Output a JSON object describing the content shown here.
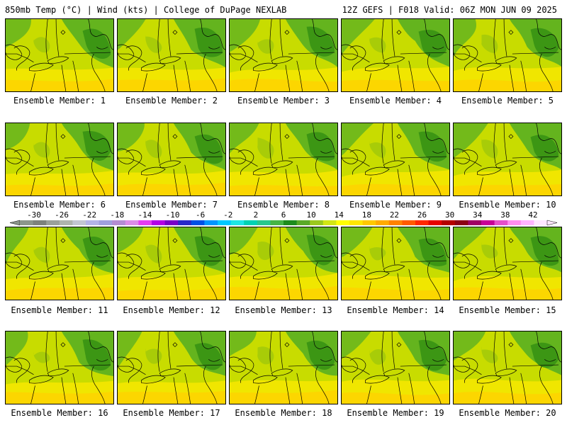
{
  "header": {
    "left": "850mb Temp (°C) | Wind (kts) | College of DuPage NEXLAB",
    "right": "12Z GEFS | F018 Valid: 06Z MON JUN 09 2025"
  },
  "panels": [
    {
      "label": "Ensemble Member: 1"
    },
    {
      "label": "Ensemble Member: 2"
    },
    {
      "label": "Ensemble Member: 3"
    },
    {
      "label": "Ensemble Member: 4"
    },
    {
      "label": "Ensemble Member: 5"
    },
    {
      "label": "Ensemble Member: 6"
    },
    {
      "label": "Ensemble Member: 7"
    },
    {
      "label": "Ensemble Member: 8"
    },
    {
      "label": "Ensemble Member: 9"
    },
    {
      "label": "Ensemble Member: 10"
    },
    {
      "label": "Ensemble Member: 11"
    },
    {
      "label": "Ensemble Member: 12"
    },
    {
      "label": "Ensemble Member: 13"
    },
    {
      "label": "Ensemble Member: 14"
    },
    {
      "label": "Ensemble Member: 15"
    },
    {
      "label": "Ensemble Member: 16"
    },
    {
      "label": "Ensemble Member: 17"
    },
    {
      "label": "Ensemble Member: 18"
    },
    {
      "label": "Ensemble Member: 19"
    },
    {
      "label": "Ensemble Member: 20"
    }
  ],
  "colorbar": {
    "labels": [
      "-30",
      "-26",
      "-22",
      "-18",
      "-14",
      "-10",
      "-6",
      "-2",
      "2",
      "6",
      "10",
      "14",
      "18",
      "22",
      "26",
      "30",
      "34",
      "38",
      "42"
    ],
    "colors": [
      "#8c968c",
      "#7d827d",
      "#9aa09a",
      "#aeb4ae",
      "#c2c6d2",
      "#b4b4e6",
      "#a0a0dc",
      "#b48cd2",
      "#dc8ce6",
      "#e63cf0",
      "#b400e6",
      "#7800c8",
      "#2828c8",
      "#0050e6",
      "#0096ff",
      "#00c8ff",
      "#1ee6e6",
      "#00d2b4",
      "#28c88c",
      "#46b446",
      "#1e8c1e",
      "#5aaa28",
      "#9bc81e",
      "#d2e614",
      "#ffff00",
      "#ffe600",
      "#ffc800",
      "#ffaa00",
      "#ff8200",
      "#ff5a00",
      "#ff2800",
      "#e60000",
      "#b40000",
      "#8c0014",
      "#a00064",
      "#c80096",
      "#e650c8",
      "#ff8cf0",
      "#ffb4ff",
      "#ffe6ff"
    ]
  },
  "field_colors": {
    "dark_green": "#3c9614",
    "green": "#64b41e",
    "lime": "#a0c80a",
    "yellow_green": "#c8dc00",
    "yellow": "#f0e600",
    "gold": "#ffd200",
    "orange": "#ffc000"
  }
}
